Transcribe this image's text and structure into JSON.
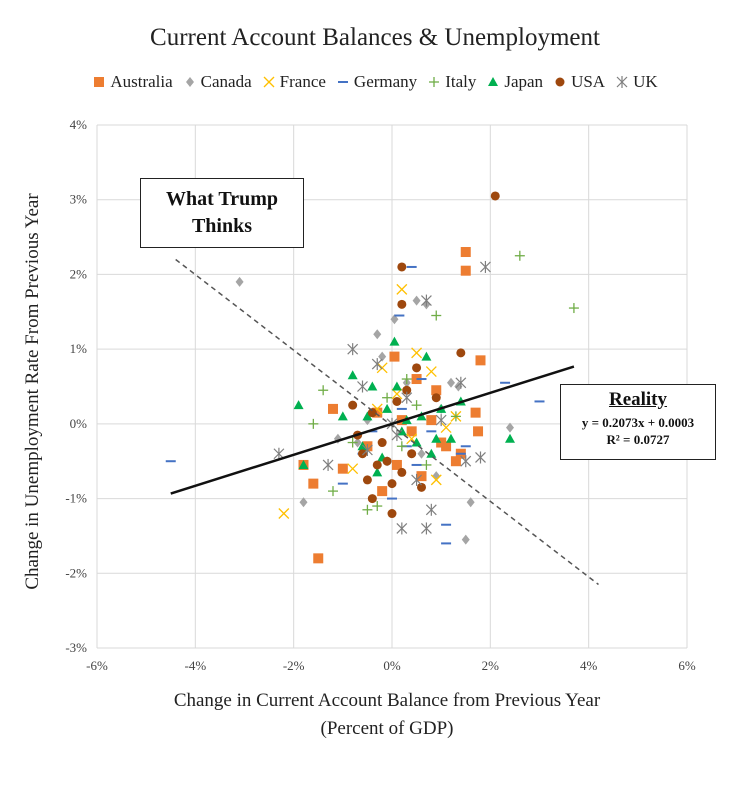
{
  "chart_data": {
    "type": "scatter",
    "title": "Current Account Balances & Unemployment",
    "xlabel": "Change in Current Account Balance from Previous Year",
    "xlabel_sub": "(Percent of GDP)",
    "ylabel": "Change in Unemployment Rate From Previous Year",
    "xlim": [
      -6,
      6
    ],
    "ylim": [
      -3,
      4
    ],
    "x_ticks": [
      -6,
      -4,
      -2,
      0,
      2,
      4,
      6
    ],
    "y_ticks": [
      -3,
      -2,
      -1,
      0,
      1,
      2,
      3,
      4
    ],
    "tick_suffix": "%",
    "grid": true,
    "legend_position": "top",
    "series": [
      {
        "name": "Australia",
        "marker": "square",
        "color": "#ED7D31",
        "points": [
          [
            1.5,
            2.3
          ],
          [
            1.5,
            2.05
          ],
          [
            1.8,
            0.85
          ],
          [
            -1.5,
            -1.8
          ],
          [
            1.4,
            -0.4
          ],
          [
            1.7,
            0.15
          ],
          [
            1.75,
            -0.1
          ],
          [
            0.5,
            0.6
          ],
          [
            0.9,
            0.45
          ],
          [
            1.1,
            -0.3
          ],
          [
            -0.5,
            -0.3
          ],
          [
            -1.0,
            -0.6
          ],
          [
            -1.6,
            -0.8
          ],
          [
            -0.3,
            0.15
          ],
          [
            0.05,
            0.9
          ],
          [
            0.2,
            0.05
          ],
          [
            0.6,
            -0.7
          ],
          [
            1.0,
            -0.25
          ],
          [
            -0.2,
            -0.9
          ],
          [
            0.4,
            -0.1
          ],
          [
            -1.2,
            0.2
          ],
          [
            1.3,
            -0.5
          ],
          [
            0.1,
            -0.55
          ],
          [
            -1.8,
            -0.55
          ],
          [
            0.8,
            0.05
          ]
        ]
      },
      {
        "name": "Canada",
        "marker": "diamond",
        "color": "#A5A5A5",
        "points": [
          [
            -3.1,
            1.9
          ],
          [
            0.5,
            1.65
          ],
          [
            0.7,
            1.6
          ],
          [
            -0.3,
            1.2
          ],
          [
            0.05,
            1.4
          ],
          [
            -0.2,
            0.9
          ],
          [
            0.3,
            0.55
          ],
          [
            1.2,
            0.55
          ],
          [
            1.35,
            0.5
          ],
          [
            2.4,
            -0.05
          ],
          [
            1.5,
            -1.55
          ],
          [
            1.6,
            -1.05
          ],
          [
            -1.8,
            -1.05
          ],
          [
            -0.5,
            0.05
          ],
          [
            0.6,
            -0.4
          ],
          [
            1.0,
            0.2
          ],
          [
            -0.1,
            -0.5
          ],
          [
            0.9,
            -0.7
          ],
          [
            -0.7,
            -0.25
          ],
          [
            -1.1,
            -0.2
          ]
        ]
      },
      {
        "name": "France",
        "marker": "x",
        "color": "#FFC000",
        "points": [
          [
            0.2,
            1.8
          ],
          [
            -2.2,
            -1.2
          ],
          [
            0.5,
            0.95
          ],
          [
            0.8,
            0.7
          ],
          [
            -0.2,
            0.75
          ],
          [
            1.3,
            0.1
          ],
          [
            0.9,
            -0.75
          ],
          [
            -0.3,
            0.2
          ],
          [
            0.4,
            -0.2
          ],
          [
            -0.8,
            -0.6
          ],
          [
            0.1,
            0.4
          ],
          [
            1.1,
            -0.05
          ]
        ]
      },
      {
        "name": "Germany",
        "marker": "dash",
        "color": "#4472C4",
        "points": [
          [
            -4.5,
            -0.5
          ],
          [
            2.3,
            0.55
          ],
          [
            3.0,
            0.3
          ],
          [
            0.4,
            2.1
          ],
          [
            0.15,
            1.45
          ],
          [
            1.1,
            -1.35
          ],
          [
            1.1,
            -1.6
          ],
          [
            -1.0,
            -0.8
          ],
          [
            0.0,
            -1.0
          ],
          [
            0.5,
            -0.55
          ],
          [
            0.3,
            -0.3
          ],
          [
            -0.4,
            -0.1
          ],
          [
            0.8,
            -0.1
          ],
          [
            0.2,
            0.2
          ],
          [
            -0.6,
            -0.4
          ],
          [
            1.4,
            -0.4
          ],
          [
            0.6,
            0.6
          ],
          [
            1.5,
            -0.3
          ]
        ]
      },
      {
        "name": "Italy",
        "marker": "plus",
        "color": "#70AD47",
        "points": [
          [
            2.6,
            2.25
          ],
          [
            3.7,
            1.55
          ],
          [
            0.9,
            1.45
          ],
          [
            -1.4,
            0.45
          ],
          [
            -1.6,
            0.0
          ],
          [
            -0.5,
            -1.15
          ],
          [
            -0.3,
            -1.1
          ],
          [
            0.2,
            -0.3
          ],
          [
            0.5,
            0.25
          ],
          [
            -0.1,
            0.35
          ],
          [
            1.3,
            0.1
          ],
          [
            -0.8,
            -0.25
          ],
          [
            0.7,
            -0.55
          ],
          [
            -1.2,
            -0.9
          ],
          [
            0.3,
            0.6
          ]
        ]
      },
      {
        "name": "Japan",
        "marker": "triangle",
        "color": "#00B050",
        "points": [
          [
            -1.9,
            0.25
          ],
          [
            -1.8,
            -0.55
          ],
          [
            0.05,
            1.1
          ],
          [
            0.7,
            0.9
          ],
          [
            2.4,
            -0.2
          ],
          [
            1.0,
            0.2
          ],
          [
            0.5,
            -0.25
          ],
          [
            -0.4,
            0.5
          ],
          [
            -0.1,
            0.2
          ],
          [
            0.3,
            0.05
          ],
          [
            1.2,
            -0.2
          ],
          [
            -0.6,
            -0.3
          ],
          [
            0.8,
            -0.4
          ],
          [
            -1.0,
            0.1
          ],
          [
            0.1,
            0.5
          ],
          [
            -0.3,
            -0.65
          ],
          [
            0.6,
            0.1
          ],
          [
            -0.8,
            0.65
          ],
          [
            0.2,
            -0.1
          ],
          [
            1.4,
            0.3
          ],
          [
            -0.5,
            0.1
          ],
          [
            0.9,
            -0.2
          ],
          [
            -0.2,
            -0.45
          ]
        ]
      },
      {
        "name": "USA",
        "marker": "circle",
        "color": "#9E480E",
        "points": [
          [
            2.1,
            3.05
          ],
          [
            0.2,
            2.1
          ],
          [
            0.2,
            1.6
          ],
          [
            1.4,
            0.95
          ],
          [
            0.5,
            0.75
          ],
          [
            -0.4,
            0.15
          ],
          [
            -0.2,
            -0.25
          ],
          [
            0.0,
            -1.2
          ],
          [
            -0.5,
            -0.75
          ],
          [
            -0.3,
            -0.55
          ],
          [
            0.1,
            0.3
          ],
          [
            0.6,
            -0.85
          ],
          [
            0.9,
            0.35
          ],
          [
            -0.8,
            0.25
          ],
          [
            -0.1,
            -0.5
          ],
          [
            0.3,
            0.45
          ],
          [
            -0.6,
            -0.4
          ],
          [
            0.4,
            -0.4
          ],
          [
            0.0,
            -0.8
          ],
          [
            -0.4,
            -1.0
          ],
          [
            0.2,
            -0.65
          ],
          [
            -0.7,
            -0.15
          ]
        ]
      },
      {
        "name": "UK",
        "marker": "star",
        "color": "#7F7F7F",
        "points": [
          [
            1.9,
            2.1
          ],
          [
            0.7,
            1.65
          ],
          [
            -0.8,
            1.0
          ],
          [
            -0.3,
            0.8
          ],
          [
            1.4,
            0.55
          ],
          [
            -2.3,
            -0.4
          ],
          [
            0.2,
            -1.4
          ],
          [
            0.7,
            -1.4
          ],
          [
            0.8,
            -1.15
          ],
          [
            1.8,
            -0.45
          ],
          [
            1.5,
            -0.5
          ],
          [
            -1.3,
            -0.55
          ],
          [
            0.5,
            -0.75
          ],
          [
            -0.6,
            0.5
          ],
          [
            0.3,
            0.35
          ],
          [
            0.0,
            0.0
          ],
          [
            -0.5,
            -0.35
          ],
          [
            1.0,
            0.05
          ],
          [
            0.1,
            -0.15
          ]
        ]
      }
    ],
    "trend_line": {
      "x": [
        -4.5,
        3.7
      ],
      "style": "solid",
      "color": "#111111"
    },
    "opposite_line": {
      "x": [
        -4.4,
        4.2
      ],
      "y": [
        2.2,
        -2.15
      ],
      "style": "dashed",
      "color": "#555555"
    },
    "annotations": {
      "what_trump_thinks": "What Trump Thinks",
      "reality_title": "Reality",
      "reality_equation": "y = 0.2073x + 0.0003",
      "reality_r2": "R² = 0.0727"
    }
  }
}
